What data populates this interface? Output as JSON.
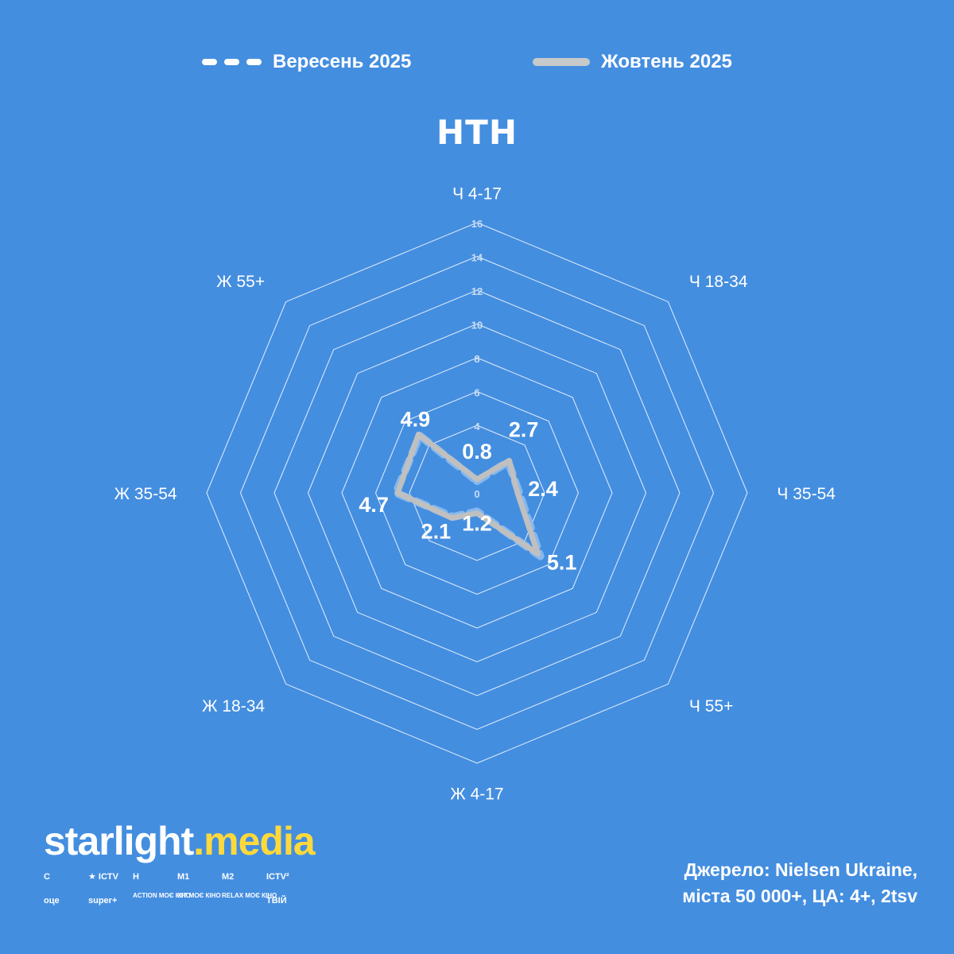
{
  "legend": {
    "series1": "Вересень 2025",
    "series2": "Жовтень 2025"
  },
  "channel": {
    "name": "НТН"
  },
  "chart_data": {
    "type": "radar",
    "categories": [
      "Ч 4-17",
      "Ч 18-34",
      "Ч 35-54",
      "Ч 55+",
      "Ж 4-17",
      "Ж 18-34",
      "Ж 35-54",
      "Ж 55+"
    ],
    "rlim": [
      0,
      16
    ],
    "ticks": [
      0,
      4,
      6,
      8,
      10,
      12,
      14,
      16
    ],
    "grid": true,
    "legend_position": "top",
    "series": [
      {
        "name": "Вересень 2025",
        "style": "dashed",
        "color": "#8cbcf0",
        "values": [
          0.7,
          2.6,
          2.5,
          5.3,
          1.1,
          2.0,
          4.8,
          4.8
        ]
      },
      {
        "name": "Жовтень 2025",
        "style": "solid",
        "color": "#c0c0c0",
        "values": [
          0.8,
          2.7,
          2.4,
          5.1,
          1.2,
          2.1,
          4.7,
          4.9
        ]
      }
    ],
    "data_labels": [
      "0.8",
      "2.7",
      "2.4",
      "5.1",
      "1.2",
      "2.1",
      "4.7",
      "4.9"
    ]
  },
  "brand": {
    "name_part1": "starlight",
    "name_part2": ".media",
    "logos": [
      "С",
      "★ ICTV",
      "Н",
      "М1",
      "М2",
      "ICTV²",
      "оце",
      "super+",
      "ACTION МОЄ КІНО",
      "ХІТ МОЄ КІНО",
      "RELAX МОЄ КІНО",
      "ТВІЙ"
    ]
  },
  "source": {
    "line1": "Джерело: Nielsen Ukraine,",
    "line2": "міста 50 000+, ЦА: 4+, 2tsv"
  },
  "colors": {
    "background": "#448ee0",
    "grid": "#ffffff",
    "series1": "#8cbcf0",
    "series2": "#c0c0c0",
    "brand_accent": "#ffd93b"
  }
}
